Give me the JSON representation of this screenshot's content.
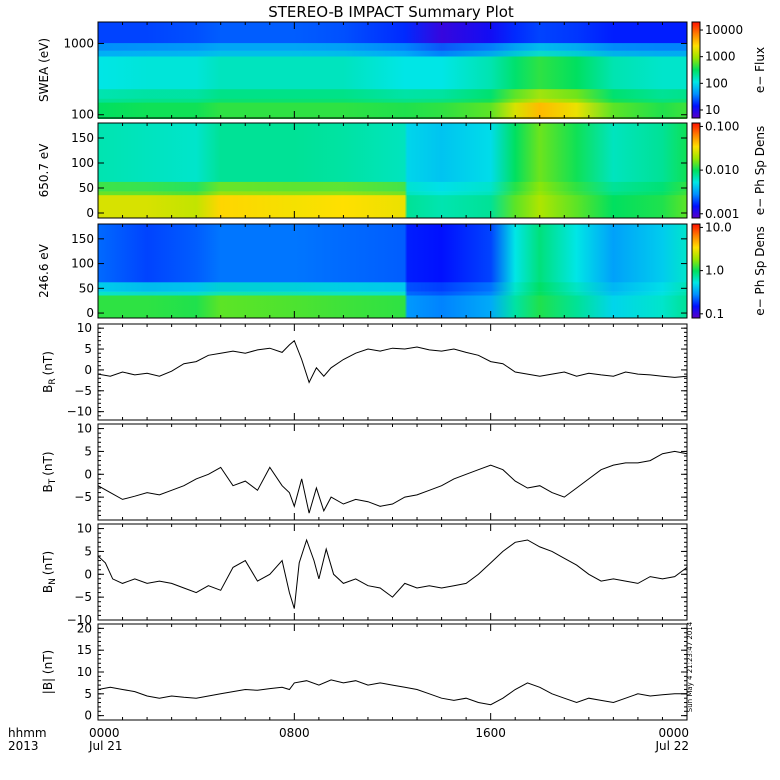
{
  "title": "STEREO-B IMPACT Summary Plot",
  "timestamp": "Sun May  4 21:23:47 2014",
  "x_axis": {
    "row1_left": "hhmm",
    "row2_left": "2013",
    "ticks": [
      {
        "t": 0,
        "top": "0000",
        "bottom": "Jul 21"
      },
      {
        "t": 8,
        "top": "0800",
        "bottom": ""
      },
      {
        "t": 16,
        "top": "1600",
        "bottom": ""
      },
      {
        "t": 24,
        "top": "0000",
        "bottom": "Jul 22"
      }
    ]
  },
  "colors": {
    "spectrogram_scale": [
      "#5a00c8",
      "#0010ff",
      "#0090ff",
      "#00e6e6",
      "#00e060",
      "#9ae600",
      "#ffe000",
      "#ff8000",
      "#ff1000"
    ],
    "line": "#000000"
  },
  "chart_data": [
    {
      "type": "heatmap",
      "panel": "swea",
      "ylabel": "SWEA (eV)",
      "yscale": "log",
      "ylim": [
        90,
        2000
      ],
      "yticks": [
        "100",
        "1000"
      ],
      "colorbar_label": "e− Flux",
      "colorbar_ticks": [
        "10",
        "100",
        "1000",
        "10000"
      ],
      "colorbar_scale": "log",
      "colorbar_range": [
        5,
        20000
      ],
      "x": [
        0,
        2,
        4,
        5,
        8,
        10,
        12.5,
        14,
        16,
        17,
        18,
        19.5,
        21,
        23,
        24
      ],
      "level_bottom": [
        4.0,
        4.1,
        4.1,
        4.3,
        4.3,
        4.3,
        4.2,
        4.3,
        4.6,
        5.6,
        6.4,
        5.8,
        4.6,
        4.2,
        4.4
      ],
      "level_mid": [
        3.0,
        3.1,
        3.1,
        3.3,
        3.3,
        3.3,
        3.0,
        3.0,
        3.4,
        3.9,
        4.3,
        4.0,
        3.4,
        3.2,
        3.2
      ],
      "level_top": [
        1.4,
        1.4,
        1.5,
        1.6,
        1.6,
        1.5,
        1.2,
        0.4,
        0.8,
        1.2,
        1.4,
        1.3,
        1.1,
        1.1,
        1.1
      ]
    },
    {
      "type": "heatmap",
      "panel": "e650",
      "ylabel": "650.7 eV",
      "ylim": [
        -10,
        180
      ],
      "yticks": [
        "0",
        "50",
        "100",
        "150"
      ],
      "colorbar_label": "e− Ph Sp Dens",
      "colorbar_ticks": [
        "0.001",
        "0.010",
        "0.100"
      ],
      "colorbar_scale": "log",
      "colorbar_range": [
        0.0008,
        0.12
      ],
      "x": [
        0,
        2,
        4,
        5,
        8,
        10,
        12.5,
        12.6,
        14,
        16,
        17,
        18,
        19.5,
        21,
        23,
        24
      ],
      "level_low": [
        5.6,
        5.6,
        5.4,
        6.1,
        5.9,
        6.0,
        5.8,
        3.6,
        3.4,
        3.6,
        4.6,
        5.2,
        4.6,
        4.0,
        4.2,
        4.6
      ],
      "level_high": [
        3.4,
        3.3,
        3.2,
        3.6,
        3.6,
        3.5,
        3.3,
        2.8,
        2.6,
        2.9,
        4.0,
        4.7,
        4.1,
        3.3,
        3.6,
        4.1
      ]
    },
    {
      "type": "heatmap",
      "panel": "e246",
      "ylabel": "246.6 eV",
      "ylim": [
        -10,
        180
      ],
      "yticks": [
        "0",
        "50",
        "100",
        "150"
      ],
      "colorbar_label": "e− Ph Sp Dens",
      "colorbar_ticks": [
        "0.1",
        "1.0",
        "10.0"
      ],
      "colorbar_scale": "log",
      "colorbar_range": [
        0.08,
        12
      ],
      "x": [
        0,
        2,
        4,
        5,
        8,
        10,
        12.5,
        12.6,
        14,
        16,
        17,
        18,
        19.5,
        21,
        23,
        24
      ],
      "level_low": [
        4.3,
        4.3,
        4.2,
        4.6,
        4.5,
        4.4,
        4.3,
        2.1,
        1.9,
        2.3,
        3.5,
        4.2,
        3.6,
        2.8,
        3.2,
        3.6
      ],
      "level_high": [
        1.7,
        1.4,
        1.6,
        1.8,
        1.8,
        1.7,
        1.6,
        1.1,
        1.0,
        1.4,
        3.0,
        3.8,
        3.0,
        2.2,
        2.7,
        3.2
      ]
    },
    {
      "type": "line",
      "panel": "br",
      "ylabel": "B",
      "ylabel_sub": "R",
      "ylabel_unit": "(nT)",
      "ylim": [
        -12,
        11
      ],
      "yticks": [
        "−10",
        "−5",
        "0",
        "5",
        "10"
      ],
      "ytick_values": [
        -10,
        -5,
        0,
        5,
        10
      ],
      "x": [
        0,
        0.5,
        1,
        1.5,
        2,
        2.5,
        3,
        3.5,
        4,
        4.5,
        5,
        5.5,
        6,
        6.5,
        7,
        7.5,
        7.8,
        8,
        8.3,
        8.6,
        8.9,
        9.2,
        9.5,
        10,
        10.5,
        11,
        11.5,
        12,
        12.5,
        13,
        13.5,
        14,
        14.5,
        15,
        15.5,
        16,
        16.5,
        17,
        17.5,
        18,
        18.5,
        19,
        19.5,
        20,
        20.5,
        21,
        21.5,
        22,
        22.5,
        23,
        23.5,
        24
      ],
      "y": [
        -1,
        -1.5,
        -0.5,
        -1.2,
        -0.8,
        -1.5,
        -0.3,
        1.5,
        2,
        3.5,
        4,
        4.5,
        4,
        4.8,
        5.2,
        4.2,
        6,
        7,
        2.5,
        -3,
        0.5,
        -1.5,
        0.5,
        2.5,
        4,
        5,
        4.5,
        5.2,
        5,
        5.5,
        4.8,
        4.5,
        5,
        4.2,
        3.5,
        2,
        1.5,
        -0.5,
        -1,
        -1.5,
        -1,
        -0.5,
        -1.5,
        -0.8,
        -1.2,
        -1.5,
        -0.5,
        -1,
        -1.2,
        -1.5,
        -1.8,
        -1.5
      ]
    },
    {
      "type": "line",
      "panel": "bt",
      "ylabel": "B",
      "ylabel_sub": "T",
      "ylabel_unit": "(nT)",
      "ylim": [
        -10,
        11
      ],
      "yticks": [
        "−5",
        "0",
        "5",
        "10"
      ],
      "ytick_values": [
        -5,
        0,
        5,
        10
      ],
      "x": [
        0,
        0.5,
        1,
        1.5,
        2,
        2.5,
        3,
        3.5,
        4,
        4.5,
        5,
        5.5,
        6,
        6.5,
        7,
        7.5,
        7.8,
        8,
        8.3,
        8.6,
        8.9,
        9.2,
        9.5,
        10,
        10.5,
        11,
        11.5,
        12,
        12.5,
        13,
        13.5,
        14,
        14.5,
        15,
        15.5,
        16,
        16.5,
        17,
        17.5,
        18,
        18.5,
        19,
        19.5,
        20,
        20.5,
        21,
        21.5,
        22,
        22.5,
        23,
        23.5,
        24
      ],
      "y": [
        -2.5,
        -4,
        -5.5,
        -4.8,
        -4,
        -4.5,
        -3.5,
        -2.5,
        -1,
        0,
        1.5,
        -2.5,
        -1.5,
        -3.5,
        1.5,
        -2.5,
        -4,
        -7,
        -1,
        -8.5,
        -3,
        -8,
        -5,
        -6.5,
        -5.5,
        -6,
        -7,
        -6.5,
        -5,
        -4.5,
        -3.5,
        -2.5,
        -1,
        0,
        1,
        2,
        1,
        -1.5,
        -3,
        -2.5,
        -4,
        -5,
        -3,
        -1,
        1,
        2,
        2.5,
        2.5,
        3,
        4.5,
        5,
        4.5
      ]
    },
    {
      "type": "line",
      "panel": "bn",
      "ylabel": "B",
      "ylabel_sub": "N",
      "ylabel_unit": "(nT)",
      "ylim": [
        -10,
        11
      ],
      "yticks": [
        "−10",
        "−5",
        "0",
        "5",
        "10"
      ],
      "ytick_values": [
        -10,
        -5,
        0,
        5,
        10
      ],
      "x": [
        0,
        0.3,
        0.6,
        1,
        1.5,
        2,
        2.5,
        3,
        3.5,
        4,
        4.5,
        5,
        5.5,
        6,
        6.5,
        7,
        7.5,
        7.8,
        8,
        8.2,
        8.5,
        8.8,
        9,
        9.3,
        9.6,
        10,
        10.5,
        11,
        11.5,
        12,
        12.5,
        13,
        13.5,
        14,
        14.5,
        15,
        15.5,
        16,
        16.5,
        17,
        17.5,
        18,
        18.5,
        19,
        19.5,
        20,
        20.5,
        21,
        21.5,
        22,
        22.5,
        23,
        23.5,
        24
      ],
      "y": [
        4,
        2.5,
        -1,
        -2,
        -1,
        -2,
        -1.5,
        -2,
        -3,
        -4,
        -2.5,
        -3.5,
        1.5,
        3,
        -1.5,
        0,
        3,
        -4,
        -7.5,
        2.5,
        7.5,
        3,
        -1,
        5.5,
        0,
        -2,
        -1,
        -2.5,
        -3,
        -5,
        -2,
        -3,
        -2.5,
        -3,
        -2.5,
        -2,
        0,
        2.5,
        5,
        7,
        7.5,
        6,
        5,
        3.5,
        2,
        0,
        -1.5,
        -1,
        -1.5,
        -2,
        -0.5,
        -1,
        -0.5,
        1.5
      ]
    },
    {
      "type": "line",
      "panel": "bmag",
      "ylabel": "|B| (nT)",
      "ylim": [
        -1,
        21
      ],
      "yticks": [
        "0",
        "5",
        "10",
        "15",
        "20"
      ],
      "ytick_values": [
        0,
        5,
        10,
        15,
        20
      ],
      "x": [
        0,
        0.5,
        1,
        1.5,
        2,
        2.5,
        3,
        3.5,
        4,
        4.5,
        5,
        5.5,
        6,
        6.5,
        7,
        7.5,
        7.8,
        8,
        8.5,
        9,
        9.5,
        10,
        10.5,
        11,
        11.5,
        12,
        12.5,
        13,
        13.5,
        14,
        14.5,
        15,
        15.5,
        16,
        16.5,
        17,
        17.5,
        18,
        18.5,
        19,
        19.5,
        20,
        20.5,
        21,
        21.5,
        22,
        22.5,
        23,
        23.5,
        24
      ],
      "y": [
        6,
        6.5,
        6,
        5.5,
        4.5,
        4,
        4.5,
        4.2,
        4,
        4.5,
        5,
        5.5,
        6,
        5.8,
        6.2,
        6.5,
        6,
        7.5,
        8,
        7,
        8.2,
        7.5,
        8,
        7,
        7.5,
        7,
        6.5,
        6,
        5,
        4,
        3.5,
        4,
        3,
        2.5,
        4,
        6,
        7.5,
        6.5,
        5,
        4,
        3,
        4,
        3.5,
        3,
        4,
        5,
        4.5,
        4.8,
        5,
        5
      ]
    }
  ]
}
